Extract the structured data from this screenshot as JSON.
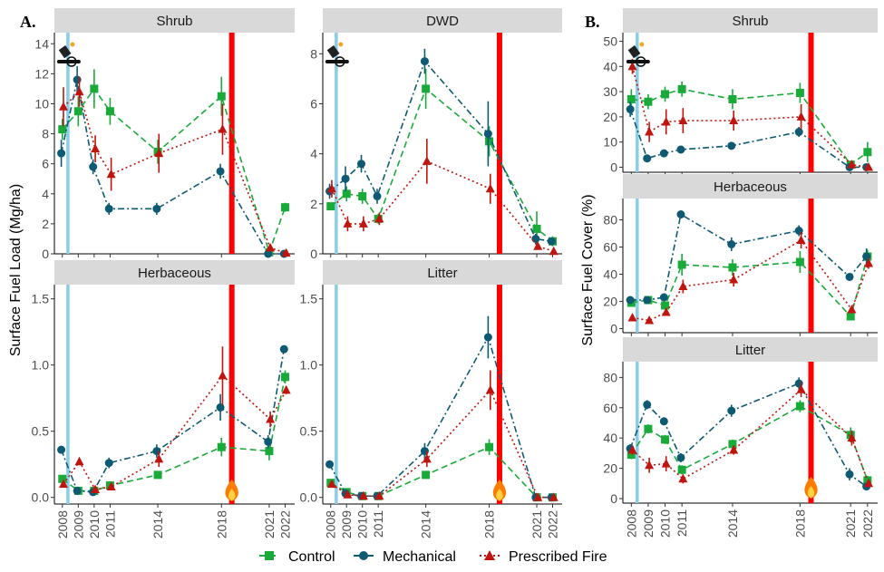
{
  "figure": {
    "panel_labels": [
      "A.",
      "B."
    ],
    "ylabel_left": "Surface Fuel Load (Mg/ha)",
    "ylabel_right": "Surface Fuel Cover (%)",
    "legend": [
      {
        "label": "Control",
        "color": "#1aaa3a",
        "marker": "square"
      },
      {
        "label": "Mechanical",
        "color": "#0f5a73",
        "marker": "circle"
      },
      {
        "label": "Prescribed Fire",
        "color": "#c0150f",
        "marker": "triangle"
      }
    ],
    "colors": {
      "control": "#1aaa3a",
      "mechanical": "#0f5a73",
      "fire": "#c0150f",
      "treatment_line": "#87ceeb",
      "fire_line": "#ff0000",
      "strip": "#d9d9d9"
    },
    "icons": [
      "chainsaw-icon",
      "drip-torch-icon",
      "flame-icon"
    ]
  },
  "chart_data": [
    {
      "type": "line",
      "id": "A-shrub",
      "strip": "Shrub",
      "x": [
        2008,
        2009,
        2010,
        2011,
        2014,
        2018,
        2021,
        2022
      ],
      "x_ticks": [
        "2008",
        "2009",
        "2010",
        "2011",
        "2014",
        "2018",
        "2021",
        "2022"
      ],
      "ylim": [
        0,
        14.5
      ],
      "y_ticks": [
        0,
        2,
        4,
        6,
        8,
        10,
        12,
        14
      ],
      "y_tick_labels": [
        "0",
        "2",
        "4",
        "6",
        "8",
        "10",
        "12",
        "14"
      ],
      "series": [
        {
          "name": "Control",
          "values": [
            8.3,
            9.5,
            11.0,
            9.5,
            6.8,
            10.5,
            0.1,
            3.1
          ],
          "err": [
            0.7,
            1.0,
            1.3,
            0.9,
            0.8,
            1.3,
            0.1,
            0.3
          ]
        },
        {
          "name": "Mechanical",
          "values": [
            6.7,
            11.6,
            5.8,
            3.0,
            3.0,
            5.5,
            0.0,
            0.0
          ],
          "err": [
            0.9,
            0.9,
            0.5,
            0.4,
            0.4,
            0.5,
            0.05,
            0.05
          ]
        },
        {
          "name": "Prescribed Fire",
          "values": [
            9.8,
            10.8,
            7.0,
            5.3,
            6.7,
            8.3,
            0.4,
            0.05
          ],
          "err": [
            1.3,
            1.0,
            0.9,
            1.1,
            1.3,
            1.7,
            0.2,
            0.05
          ]
        }
      ]
    },
    {
      "type": "line",
      "id": "A-dwd",
      "strip": "DWD",
      "x": [
        2008,
        2009,
        2010,
        2011,
        2014,
        2018,
        2021,
        2022
      ],
      "x_ticks": [
        "2008",
        "2009",
        "2010",
        "2011",
        "2014",
        "2018",
        "2021",
        "2022"
      ],
      "ylim": [
        0,
        8.7
      ],
      "y_ticks": [
        0,
        2,
        4,
        6,
        8
      ],
      "y_tick_labels": [
        "0",
        "2",
        "4",
        "6",
        "8"
      ],
      "series": [
        {
          "name": "Control",
          "values": [
            1.9,
            2.4,
            2.3,
            1.4,
            6.6,
            4.5,
            1.0,
            0.5
          ],
          "err": [
            0.15,
            0.3,
            0.3,
            0.2,
            0.8,
            0.6,
            0.7,
            0.2
          ]
        },
        {
          "name": "Mechanical",
          "values": [
            2.5,
            3.0,
            3.6,
            2.3,
            7.7,
            4.8,
            0.6,
            0.5
          ],
          "err": [
            0.3,
            0.5,
            0.35,
            0.3,
            0.5,
            1.3,
            0.2,
            0.1
          ]
        },
        {
          "name": "Prescribed Fire",
          "values": [
            2.6,
            1.2,
            1.2,
            1.4,
            3.7,
            2.6,
            0.3,
            0.1
          ],
          "err": [
            0.35,
            0.3,
            0.3,
            0.25,
            0.9,
            0.6,
            0.1,
            0.05
          ]
        }
      ]
    },
    {
      "type": "line",
      "id": "A-herbaceous",
      "strip": "Herbaceous",
      "x": [
        2008,
        2009,
        2010,
        2011,
        2014,
        2018,
        2021,
        2022
      ],
      "x_ticks": [
        "2008",
        "2009",
        "2010",
        "2011",
        "2014",
        "2018",
        "2021",
        "2022"
      ],
      "ylim": [
        -0.05,
        1.58
      ],
      "y_ticks": [
        0,
        0.5,
        1.0,
        1.5
      ],
      "y_tick_labels": [
        "0.0",
        "0.5",
        "1.0",
        "1.5"
      ],
      "series": [
        {
          "name": "Control",
          "values": [
            0.14,
            0.05,
            0.05,
            0.09,
            0.17,
            0.38,
            0.35,
            0.91
          ],
          "err": [
            0.02,
            0.01,
            0.01,
            0.02,
            0.03,
            0.07,
            0.07,
            0.05
          ]
        },
        {
          "name": "Mechanical",
          "values": [
            0.36,
            0.05,
            0.04,
            0.26,
            0.35,
            0.68,
            0.42,
            1.12
          ],
          "err": [
            0.02,
            0.01,
            0.01,
            0.04,
            0.05,
            0.1,
            0.05,
            0.02
          ]
        },
        {
          "name": "Prescribed Fire",
          "values": [
            0.1,
            0.27,
            0.06,
            0.08,
            0.29,
            0.92,
            0.59,
            0.81
          ],
          "err": [
            0.02,
            0.02,
            0.01,
            0.01,
            0.06,
            0.22,
            0.06,
            0.03
          ]
        }
      ]
    },
    {
      "type": "line",
      "id": "A-litter",
      "strip": "Litter",
      "x": [
        2008,
        2009,
        2010,
        2011,
        2014,
        2018,
        2021,
        2022
      ],
      "x_ticks": [
        "2008",
        "2009",
        "2010",
        "2011",
        "2014",
        "2018",
        "2021",
        "2022"
      ],
      "ylim": [
        -0.05,
        1.58
      ],
      "y_ticks": [
        0,
        0.5,
        1.0,
        1.5
      ],
      "y_tick_labels": [
        "0.0",
        "0.5",
        "1.0",
        "1.5"
      ],
      "series": [
        {
          "name": "Control",
          "values": [
            0.11,
            0.04,
            0.01,
            0.01,
            0.17,
            0.38,
            0.0,
            0.0
          ],
          "err": [
            0.02,
            0.01,
            0.01,
            0.01,
            0.03,
            0.06,
            0.01,
            0.01
          ]
        },
        {
          "name": "Mechanical",
          "values": [
            0.25,
            0.03,
            0.01,
            0.01,
            0.35,
            1.21,
            0.0,
            0.0
          ],
          "err": [
            0.03,
            0.01,
            0.01,
            0.01,
            0.06,
            0.16,
            0.01,
            0.01
          ]
        },
        {
          "name": "Prescribed Fire",
          "values": [
            0.1,
            0.02,
            0.01,
            0.01,
            0.29,
            0.81,
            0.0,
            0.0
          ],
          "err": [
            0.02,
            0.01,
            0.01,
            0.01,
            0.06,
            0.15,
            0.01,
            0.01
          ]
        }
      ]
    },
    {
      "type": "line",
      "id": "B-shrub",
      "strip": "Shrub",
      "x": [
        2008,
        2009,
        2010,
        2011,
        2014,
        2018,
        2021,
        2022
      ],
      "x_ticks": [
        "2008",
        "2009",
        "2010",
        "2011",
        "2014",
        "2018",
        "2021",
        "2022"
      ],
      "ylim": [
        -2,
        52
      ],
      "y_ticks": [
        0,
        10,
        20,
        30,
        40,
        50
      ],
      "y_tick_labels": [
        "0",
        "10",
        "20",
        "30",
        "40",
        "50"
      ],
      "series": [
        {
          "name": "Control",
          "values": [
            27,
            26,
            29,
            31,
            27,
            29.5,
            1,
            6
          ],
          "err": [
            4,
            3,
            3,
            3,
            4,
            4,
            1,
            4
          ]
        },
        {
          "name": "Mechanical",
          "values": [
            23,
            3.5,
            5.5,
            7,
            8.5,
            14,
            0,
            0
          ],
          "err": [
            3,
            1,
            1,
            1,
            1,
            2,
            0.5,
            0.5
          ]
        },
        {
          "name": "Prescribed Fire",
          "values": [
            40,
            14,
            18,
            18.5,
            18.5,
            20,
            1,
            0
          ],
          "err": [
            3,
            4,
            5,
            5,
            4,
            5,
            1,
            0.5
          ]
        }
      ]
    },
    {
      "type": "line",
      "id": "B-herbaceous",
      "strip": "Herbaceous",
      "x": [
        2008,
        2009,
        2010,
        2011,
        2014,
        2018,
        2021,
        2022
      ],
      "x_ticks": [
        "2008",
        "2009",
        "2010",
        "2011",
        "2014",
        "2018",
        "2021",
        "2022"
      ],
      "ylim": [
        -3,
        93
      ],
      "y_ticks": [
        0,
        20,
        40,
        60,
        80
      ],
      "y_tick_labels": [
        "0",
        "20",
        "40",
        "60",
        "80"
      ],
      "series": [
        {
          "name": "Control",
          "values": [
            19,
            21,
            17,
            47,
            45,
            49,
            9,
            53
          ],
          "err": [
            2,
            3,
            3,
            8,
            6,
            8,
            2,
            5
          ]
        },
        {
          "name": "Mechanical",
          "values": [
            21,
            21,
            23,
            84,
            62,
            72,
            38,
            53
          ],
          "err": [
            2,
            2,
            2,
            3,
            5,
            4,
            2,
            6
          ]
        },
        {
          "name": "Prescribed Fire",
          "values": [
            8,
            6,
            12,
            31,
            36,
            65,
            14,
            48
          ],
          "err": [
            1,
            1,
            2,
            5,
            5,
            6,
            2,
            4
          ]
        }
      ]
    },
    {
      "type": "line",
      "id": "B-litter",
      "strip": "Litter",
      "x": [
        2008,
        2009,
        2010,
        2011,
        2014,
        2018,
        2021,
        2022
      ],
      "x_ticks": [
        "2008",
        "2009",
        "2010",
        "2011",
        "2014",
        "2018",
        "2021",
        "2022"
      ],
      "ylim": [
        -3,
        88
      ],
      "y_ticks": [
        0,
        20,
        40,
        60,
        80
      ],
      "y_tick_labels": [
        "0",
        "20",
        "40",
        "60",
        "80"
      ],
      "series": [
        {
          "name": "Control",
          "values": [
            29,
            46,
            39,
            19,
            36,
            61,
            42,
            12
          ],
          "err": [
            3,
            3,
            3,
            3,
            3,
            4,
            5,
            3
          ]
        },
        {
          "name": "Mechanical",
          "values": [
            33,
            62,
            51,
            27,
            58,
            76,
            16,
            8
          ],
          "err": [
            3,
            3,
            2,
            3,
            4,
            4,
            4,
            2
          ]
        },
        {
          "name": "Prescribed Fire",
          "values": [
            32,
            22,
            23,
            13,
            32,
            72,
            40,
            10
          ],
          "err": [
            3,
            5,
            5,
            3,
            3,
            5,
            5,
            2
          ]
        }
      ]
    }
  ]
}
